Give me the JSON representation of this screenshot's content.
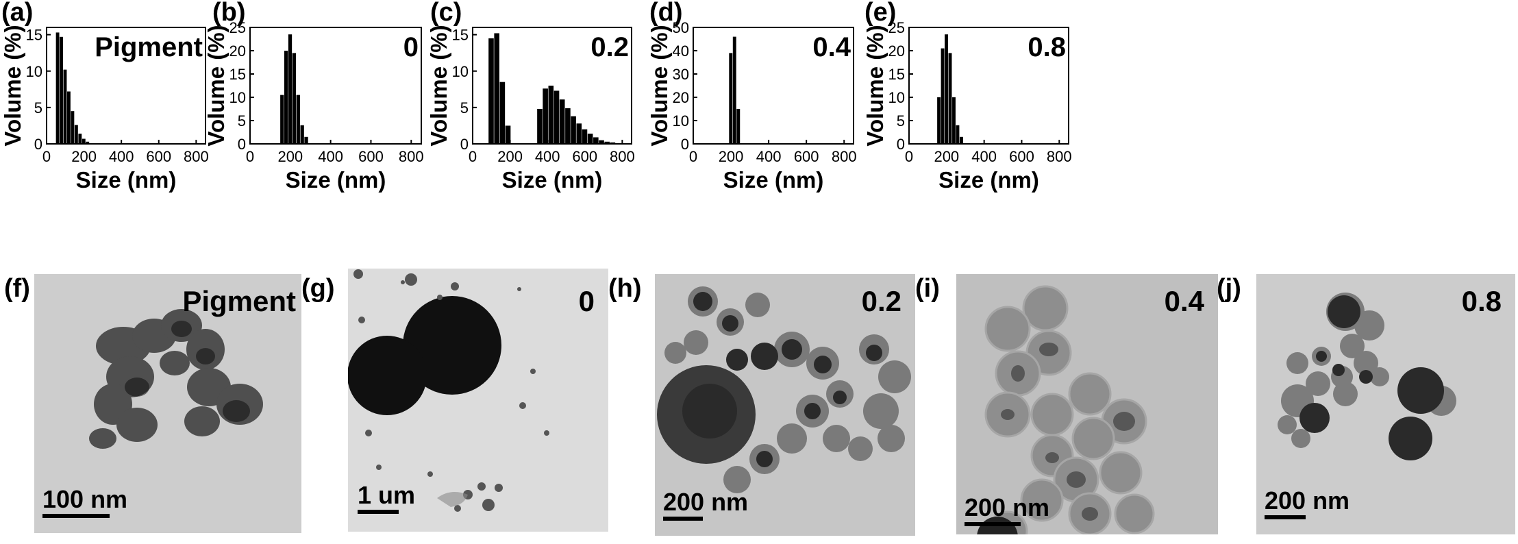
{
  "chart_data": [
    {
      "type": "bar",
      "panel": "(a)",
      "annotation": "Pigment",
      "xlabel": "Size (nm)",
      "ylabel": "Volume (%)",
      "xlim": [
        0,
        850
      ],
      "ylim": [
        0,
        16
      ],
      "xticks": [
        0,
        200,
        400,
        600,
        800
      ],
      "yticks": [
        0,
        5,
        10,
        15
      ],
      "bin_width": 20,
      "x": [
        60,
        80,
        100,
        120,
        140,
        160,
        180,
        200,
        220,
        240
      ],
      "values": [
        15.3,
        14.7,
        10.2,
        7.2,
        4.5,
        2.6,
        1.4,
        0.7,
        0.3,
        0.1
      ]
    },
    {
      "type": "bar",
      "panel": "(b)",
      "annotation": "0",
      "xlabel": "Size (nm)",
      "ylabel": "Volume (%)",
      "xlim": [
        0,
        850
      ],
      "ylim": [
        0,
        25
      ],
      "xticks": [
        0,
        200,
        400,
        600,
        800
      ],
      "yticks": [
        0,
        5,
        10,
        15,
        20,
        25
      ],
      "bin_width": 20,
      "x": [
        160,
        180,
        200,
        220,
        240,
        260,
        280
      ],
      "values": [
        10.5,
        20.0,
        23.5,
        19.5,
        10.5,
        4.0,
        1.5
      ]
    },
    {
      "type": "bar",
      "panel": "(c)",
      "annotation": "0.2",
      "xlabel": "Size (nm)",
      "ylabel": "Volume (%)",
      "xlim": [
        0,
        850
      ],
      "ylim": [
        0,
        16
      ],
      "xticks": [
        0,
        200,
        400,
        600,
        800
      ],
      "yticks": [
        0,
        5,
        10,
        15
      ],
      "bin_width": 30,
      "x": [
        100,
        130,
        160,
        190,
        360,
        390,
        420,
        450,
        480,
        510,
        540,
        570,
        600,
        630,
        660,
        690,
        720,
        750,
        780
      ],
      "values": [
        14.5,
        15.2,
        8.5,
        2.5,
        4.8,
        7.6,
        8.0,
        7.3,
        6.1,
        4.9,
        3.8,
        2.8,
        2.0,
        1.4,
        0.9,
        0.5,
        0.3,
        0.2,
        0.1
      ]
    },
    {
      "type": "bar",
      "panel": "(d)",
      "annotation": "0.4",
      "xlabel": "Size (nm)",
      "ylabel": "Volume (%)",
      "xlim": [
        0,
        850
      ],
      "ylim": [
        0,
        50
      ],
      "xticks": [
        0,
        200,
        400,
        600,
        800
      ],
      "yticks": [
        0,
        10,
        20,
        30,
        40,
        50
      ],
      "bin_width": 20,
      "x": [
        200,
        220,
        240
      ],
      "values": [
        39.0,
        46.0,
        15.0
      ]
    },
    {
      "type": "bar",
      "panel": "(e)",
      "annotation": "0.8",
      "xlabel": "Size (nm)",
      "ylabel": "Volume (%)",
      "xlim": [
        0,
        850
      ],
      "ylim": [
        0,
        25
      ],
      "xticks": [
        0,
        200,
        400,
        600,
        800
      ],
      "yticks": [
        0,
        5,
        10,
        15,
        20,
        25
      ],
      "bin_width": 20,
      "x": [
        160,
        180,
        200,
        220,
        240,
        260,
        280
      ],
      "values": [
        10.0,
        20.5,
        23.5,
        19.5,
        10.0,
        4.0,
        1.5
      ]
    }
  ],
  "tem_images": [
    {
      "panel": "(f)",
      "annotation": "Pigment",
      "scale_text": "100 nm"
    },
    {
      "panel": "(g)",
      "annotation": "0",
      "scale_text": "1 um"
    },
    {
      "panel": "(h)",
      "annotation": "0.2",
      "scale_text": "200 nm"
    },
    {
      "panel": "(i)",
      "annotation": "0.4",
      "scale_text": "200 nm"
    },
    {
      "panel": "(j)",
      "annotation": "0.8",
      "scale_text": "200 nm"
    }
  ],
  "colors": {
    "bars": "#000000",
    "tem_background": "#c9c9c9",
    "particle_dark": "#1a1a1a",
    "particle_gray": "#8a8a8a"
  }
}
